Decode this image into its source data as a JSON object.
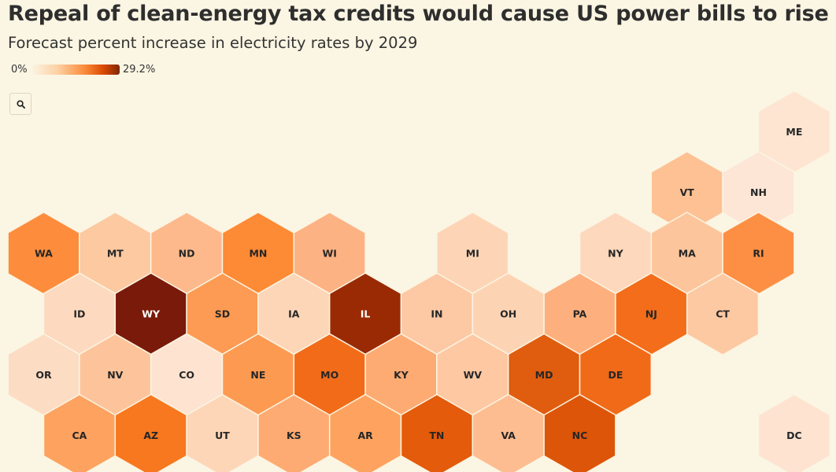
{
  "header": {
    "title": "Repeal of clean-energy tax credits would cause US power bills to rise",
    "subtitle": "Forecast percent increase in electricity rates by 2029"
  },
  "legend": {
    "min_label": "0%",
    "max_label": "29.2%",
    "min": 0,
    "max": 29.2
  },
  "toolbar": {
    "zoom_icon": "search-icon"
  },
  "colors": {
    "background": "#fbf5e3",
    "hex_stroke": "#fbf5e3"
  },
  "map_data": {
    "type": "hex-tile-map",
    "states": [
      {
        "abbr": "ME",
        "row": 0,
        "col": 10.5,
        "color": "#fde5d2"
      },
      {
        "abbr": "VT",
        "row": 1,
        "col": 9,
        "color": "#fdc194"
      },
      {
        "abbr": "NH",
        "row": 1,
        "col": 10,
        "color": "#fde6d6"
      },
      {
        "abbr": "WA",
        "row": 2,
        "col": 0,
        "color": "#fd8d3c"
      },
      {
        "abbr": "MT",
        "row": 2,
        "col": 1,
        "color": "#fdc9a1"
      },
      {
        "abbr": "ND",
        "row": 2,
        "col": 2,
        "color": "#fdb98c"
      },
      {
        "abbr": "MN",
        "row": 2,
        "col": 3,
        "color": "#fd8a34"
      },
      {
        "abbr": "WI",
        "row": 2,
        "col": 4,
        "color": "#fdb283"
      },
      {
        "abbr": "MI",
        "row": 2,
        "col": 6,
        "color": "#fdd5b6"
      },
      {
        "abbr": "NY",
        "row": 2,
        "col": 8,
        "color": "#fdd8bc"
      },
      {
        "abbr": "MA",
        "row": 2,
        "col": 9,
        "color": "#fdc59b"
      },
      {
        "abbr": "RI",
        "row": 2,
        "col": 10,
        "color": "#fd8f44"
      },
      {
        "abbr": "ID",
        "row": 3,
        "col": 0.5,
        "color": "#fdd9bf"
      },
      {
        "abbr": "WY",
        "row": 3,
        "col": 1.5,
        "color": "#7a1a0a",
        "light": true
      },
      {
        "abbr": "SD",
        "row": 3,
        "col": 2.5,
        "color": "#fd9a53"
      },
      {
        "abbr": "IA",
        "row": 3,
        "col": 3.5,
        "color": "#fdd6b8"
      },
      {
        "abbr": "IL",
        "row": 3,
        "col": 4.5,
        "color": "#9a2a04",
        "light": true
      },
      {
        "abbr": "IN",
        "row": 3,
        "col": 5.5,
        "color": "#fdc8a4"
      },
      {
        "abbr": "OH",
        "row": 3,
        "col": 6.5,
        "color": "#fdd4b3"
      },
      {
        "abbr": "PA",
        "row": 3,
        "col": 7.5,
        "color": "#fdb07d"
      },
      {
        "abbr": "NJ",
        "row": 3,
        "col": 8.5,
        "color": "#f36d1a"
      },
      {
        "abbr": "CT",
        "row": 3,
        "col": 9.5,
        "color": "#fdc9a3"
      },
      {
        "abbr": "OR",
        "row": 4,
        "col": 0,
        "color": "#fddcc4"
      },
      {
        "abbr": "NV",
        "row": 4,
        "col": 1,
        "color": "#fdc49b"
      },
      {
        "abbr": "CO",
        "row": 4,
        "col": 2,
        "color": "#fde3d0"
      },
      {
        "abbr": "NE",
        "row": 4,
        "col": 3,
        "color": "#fd9a52"
      },
      {
        "abbr": "MO",
        "row": 4,
        "col": 4,
        "color": "#f26b19"
      },
      {
        "abbr": "KY",
        "row": 4,
        "col": 5,
        "color": "#fdab73"
      },
      {
        "abbr": "WV",
        "row": 4,
        "col": 6,
        "color": "#fdc8a2"
      },
      {
        "abbr": "MD",
        "row": 4,
        "col": 7,
        "color": "#e05c0e"
      },
      {
        "abbr": "DE",
        "row": 4,
        "col": 8,
        "color": "#f06a18"
      },
      {
        "abbr": "CA",
        "row": 5,
        "col": 0.5,
        "color": "#fda25f"
      },
      {
        "abbr": "AZ",
        "row": 5,
        "col": 1.5,
        "color": "#f7781e"
      },
      {
        "abbr": "UT",
        "row": 5,
        "col": 2.5,
        "color": "#fdd6b8"
      },
      {
        "abbr": "KS",
        "row": 5,
        "col": 3.5,
        "color": "#fdab72"
      },
      {
        "abbr": "AR",
        "row": 5,
        "col": 4.5,
        "color": "#fda35f"
      },
      {
        "abbr": "TN",
        "row": 5,
        "col": 5.5,
        "color": "#e35b0b"
      },
      {
        "abbr": "VA",
        "row": 5,
        "col": 6.5,
        "color": "#fdbd91"
      },
      {
        "abbr": "NC",
        "row": 5,
        "col": 7.5,
        "color": "#dd5508"
      },
      {
        "abbr": "DC",
        "row": 5,
        "col": 10.5,
        "color": "#fde3d0"
      }
    ]
  }
}
